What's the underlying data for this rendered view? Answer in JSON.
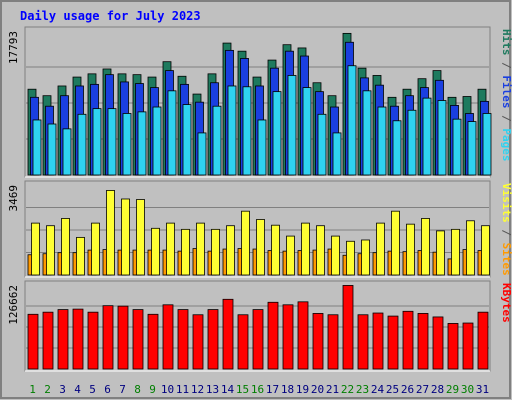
{
  "chart_data": {
    "type": "bar",
    "title": "Daily usage for July 2023",
    "days": [
      "1",
      "2",
      "3",
      "4",
      "5",
      "6",
      "7",
      "8",
      "9",
      "10",
      "11",
      "12",
      "13",
      "14",
      "15",
      "16",
      "17",
      "18",
      "19",
      "20",
      "21",
      "22",
      "23",
      "24",
      "25",
      "26",
      "27",
      "28",
      "29",
      "30",
      "31"
    ],
    "weekend_days": [
      "1",
      "2",
      "8",
      "9",
      "15",
      "16",
      "22",
      "23",
      "29",
      "30"
    ],
    "panels": [
      {
        "id": "hits",
        "max_label": "17793",
        "ymax": 17793,
        "series": [
          {
            "name": "Hits",
            "color": "#1e7a5e",
            "values": [
              10600,
              9800,
              11000,
              12100,
              12500,
              13100,
              12500,
              12400,
              12100,
              14000,
              12200,
              10000,
              12500,
              16300,
              15300,
              12100,
              14200,
              16100,
              15700,
              11400,
              9800,
              17500,
              13200,
              12300,
              9600,
              10600,
              11900,
              12900,
              9600,
              9700,
              10600
            ]
          },
          {
            "name": "Files",
            "color": "#1a3fe0",
            "values": [
              9600,
              8500,
              9800,
              11000,
              11200,
              12400,
              11500,
              11300,
              10800,
              12900,
              11200,
              9000,
              11400,
              15400,
              14400,
              11000,
              13200,
              15300,
              14700,
              10300,
              8400,
              16400,
              12000,
              11100,
              8500,
              9800,
              10800,
              11700,
              8600,
              7600,
              9100
            ]
          },
          {
            "name": "Pages",
            "color": "#2fd2f0",
            "values": [
              6800,
              6300,
              5700,
              7500,
              8200,
              8200,
              7600,
              7800,
              8400,
              10400,
              8700,
              5200,
              8500,
              11000,
              10900,
              6800,
              10300,
              12300,
              10800,
              7500,
              5200,
              13500,
              10400,
              8400,
              6700,
              8000,
              9500,
              9200,
              6900,
              6600,
              7600
            ]
          }
        ]
      },
      {
        "id": "visits",
        "max_label": "3469",
        "ymax": 3469,
        "series": [
          {
            "name": "Sites",
            "color": "#ff9a00",
            "values": [
              780,
              820,
              860,
              860,
              960,
              980,
              960,
              960,
              960,
              960,
              920,
              1020,
              920,
              1000,
              1020,
              1000,
              940,
              920,
              940,
              960,
              1000,
              760,
              820,
              860,
              920,
              900,
              940,
              880,
              620,
              980,
              940
            ]
          },
          {
            "name": "Visits",
            "color": "#ffff33",
            "values": [
              2000,
              1900,
              2180,
              1450,
              2000,
              3260,
              2930,
              2910,
              1800,
              2000,
              1760,
              2000,
              1760,
              1900,
              2460,
              2140,
              1920,
              1500,
              2000,
              1900,
              1500,
              1300,
              1350,
              2000,
              2460,
              1960,
              2180,
              1700,
              1760,
              2090,
              1900
            ]
          }
        ]
      },
      {
        "id": "kbytes",
        "max_label": "126662",
        "ymax": 126662,
        "series": [
          {
            "name": "KBytes",
            "color": "#ff0000",
            "values": [
              82500,
              85700,
              89600,
              90300,
              85700,
              95500,
              94800,
              89600,
              82500,
              96800,
              89600,
              81800,
              89600,
              105100,
              81800,
              89600,
              100600,
              96800,
              101300,
              83800,
              81800,
              126000,
              81800,
              84400,
              79800,
              87000,
              83800,
              78500,
              68700,
              69300,
              85700
            ]
          }
        ]
      }
    ],
    "side_labels": {
      "hits": [
        {
          "text": "Pages",
          "color": "#2fd2f0"
        },
        {
          "text": " / ",
          "color": "#555555"
        },
        {
          "text": "Files",
          "color": "#1a3fe0"
        },
        {
          "text": " / ",
          "color": "#555555"
        },
        {
          "text": "Hits",
          "color": "#1e7a5e"
        }
      ],
      "visits": [
        {
          "text": "Sites",
          "color": "#ff9a00"
        },
        {
          "text": " / ",
          "color": "#555555"
        },
        {
          "text": "Visits",
          "color": "#ffff33"
        }
      ],
      "kbytes": [
        {
          "text": "KBytes",
          "color": "#ff0000"
        }
      ]
    },
    "colors": {
      "background": "#c0c0c0",
      "title": "#0000ff",
      "weekday_label": "#000080",
      "weekend_label": "#007f00",
      "grid": "#808080"
    }
  }
}
